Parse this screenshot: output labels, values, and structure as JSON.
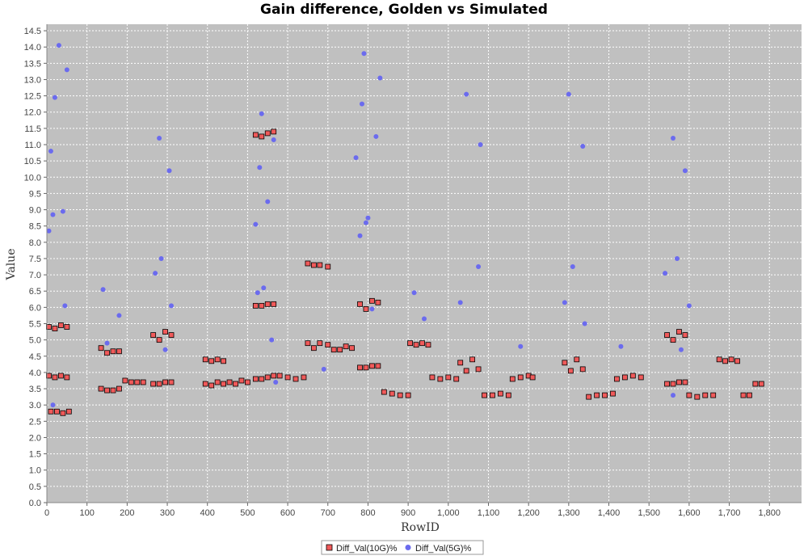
{
  "chart_data": {
    "type": "scatter",
    "title": "Gain difference, Golden vs Simulated",
    "xlabel": "RowID",
    "ylabel": "Value",
    "xlim": [
      0,
      1880
    ],
    "ylim": [
      0,
      14.7
    ],
    "x_ticks": [
      "0",
      "100",
      "200",
      "300",
      "400",
      "500",
      "600",
      "700",
      "800",
      "900",
      "1,000",
      "1,100",
      "1,200",
      "1,300",
      "1,400",
      "1,500",
      "1,600",
      "1,700",
      "1,800"
    ],
    "x_tick_values": [
      0,
      100,
      200,
      300,
      400,
      500,
      600,
      700,
      800,
      900,
      1000,
      1100,
      1200,
      1300,
      1400,
      1500,
      1600,
      1700,
      1800
    ],
    "y_ticks": [
      "0.0",
      "0.5",
      "1.0",
      "1.5",
      "2.0",
      "2.5",
      "3.0",
      "3.5",
      "4.0",
      "4.5",
      "5.0",
      "5.5",
      "6.0",
      "6.5",
      "7.0",
      "7.5",
      "8.0",
      "8.5",
      "9.0",
      "9.5",
      "10.0",
      "10.5",
      "11.0",
      "11.5",
      "12.0",
      "12.5",
      "13.0",
      "13.5",
      "14.0",
      "14.5"
    ],
    "y_tick_values": [
      0,
      0.5,
      1,
      1.5,
      2,
      2.5,
      3,
      3.5,
      4,
      4.5,
      5,
      5.5,
      6,
      6.5,
      7,
      7.5,
      8,
      8.5,
      9,
      9.5,
      10,
      10.5,
      11,
      11.5,
      12,
      12.5,
      13,
      13.5,
      14,
      14.5
    ],
    "grid": true,
    "legend_position": "bottom-center",
    "colors": {
      "plot_bg": "#c0c0c0",
      "grid": "#ffffff",
      "series_10g": "#f05a5a",
      "series_5g": "#6b6bee"
    },
    "series": [
      {
        "name": "Diff_Val(10G)%",
        "marker": "square",
        "x": [
          5,
          20,
          35,
          50,
          5,
          20,
          35,
          50,
          10,
          25,
          40,
          55,
          135,
          150,
          165,
          180,
          135,
          150,
          165,
          180,
          195,
          210,
          225,
          240,
          265,
          280,
          295,
          310,
          265,
          280,
          295,
          310,
          395,
          410,
          425,
          440,
          395,
          410,
          425,
          440,
          455,
          470,
          485,
          500,
          520,
          535,
          550,
          565,
          520,
          535,
          550,
          565,
          520,
          535,
          550,
          565,
          580,
          600,
          620,
          640,
          650,
          665,
          680,
          700,
          650,
          665,
          680,
          700,
          715,
          730,
          745,
          760,
          780,
          795,
          810,
          825,
          780,
          795,
          810,
          825,
          840,
          860,
          880,
          900,
          905,
          920,
          935,
          950,
          960,
          980,
          1000,
          1020,
          1030,
          1045,
          1060,
          1075,
          1090,
          1110,
          1130,
          1150,
          1160,
          1180,
          1200,
          1210,
          1290,
          1305,
          1320,
          1335,
          1350,
          1370,
          1390,
          1410,
          1420,
          1440,
          1460,
          1480,
          1545,
          1560,
          1575,
          1590,
          1545,
          1560,
          1575,
          1590,
          1600,
          1620,
          1640,
          1660,
          1675,
          1690,
          1705,
          1720,
          1735,
          1750,
          1765,
          1780
        ],
        "y": [
          3.9,
          3.85,
          3.9,
          3.85,
          5.4,
          5.35,
          5.45,
          5.4,
          2.8,
          2.8,
          2.75,
          2.8,
          4.75,
          4.6,
          4.65,
          4.65,
          3.5,
          3.45,
          3.45,
          3.5,
          3.75,
          3.7,
          3.7,
          3.7,
          5.15,
          5.0,
          5.25,
          5.15,
          3.65,
          3.65,
          3.7,
          3.7,
          4.4,
          4.35,
          4.4,
          4.35,
          3.65,
          3.6,
          3.7,
          3.65,
          3.7,
          3.65,
          3.75,
          3.7,
          11.3,
          11.25,
          11.35,
          11.4,
          6.05,
          6.05,
          6.1,
          6.1,
          3.8,
          3.8,
          3.85,
          3.9,
          3.9,
          3.85,
          3.8,
          3.85,
          7.35,
          7.3,
          7.3,
          7.25,
          4.9,
          4.75,
          4.9,
          4.85,
          4.7,
          4.7,
          4.8,
          4.75,
          6.1,
          5.95,
          6.2,
          6.15,
          4.15,
          4.15,
          4.2,
          4.2,
          3.4,
          3.35,
          3.3,
          3.3,
          4.9,
          4.85,
          4.9,
          4.85,
          3.85,
          3.8,
          3.85,
          3.8,
          4.3,
          4.05,
          4.4,
          4.1,
          3.3,
          3.3,
          3.35,
          3.3,
          3.8,
          3.85,
          3.9,
          3.85,
          4.3,
          4.05,
          4.4,
          4.1,
          3.25,
          3.3,
          3.3,
          3.35,
          3.8,
          3.85,
          3.9,
          3.85,
          5.15,
          5.0,
          5.25,
          5.15,
          3.65,
          3.65,
          3.7,
          3.7,
          3.3,
          3.25,
          3.3,
          3.3,
          4.4,
          4.35,
          4.4,
          4.35,
          3.3,
          3.3,
          3.65,
          3.65
        ]
      },
      {
        "name": "Diff_Val(5G)%",
        "marker": "circle",
        "x": [
          5,
          10,
          15,
          20,
          30,
          40,
          45,
          50,
          15,
          140,
          150,
          180,
          270,
          280,
          285,
          295,
          305,
          310,
          520,
          525,
          530,
          535,
          540,
          550,
          560,
          565,
          570,
          690,
          770,
          780,
          785,
          790,
          795,
          800,
          810,
          820,
          830,
          940,
          915,
          1030,
          1045,
          1075,
          1080,
          1180,
          1290,
          1300,
          1310,
          1335,
          1340,
          1430,
          1540,
          1560,
          1570,
          1580,
          1590,
          1600,
          1440,
          1560
        ],
        "y": [
          8.35,
          10.8,
          8.85,
          12.45,
          14.05,
          8.95,
          6.05,
          13.3,
          3.0,
          6.55,
          4.9,
          5.75,
          7.05,
          11.2,
          7.5,
          4.7,
          10.2,
          6.05,
          8.55,
          6.45,
          10.3,
          11.95,
          6.6,
          9.25,
          5.0,
          11.15,
          3.7,
          4.1,
          10.6,
          8.2,
          12.25,
          13.8,
          8.6,
          8.75,
          5.95,
          11.25,
          13.05,
          5.65,
          6.45,
          6.15,
          12.55,
          7.25,
          11.0,
          4.8,
          6.15,
          12.55,
          7.25,
          10.95,
          5.5,
          4.8,
          7.05,
          11.2,
          7.5,
          4.7,
          10.2,
          6.05,
          3.85,
          3.3
        ]
      }
    ]
  }
}
